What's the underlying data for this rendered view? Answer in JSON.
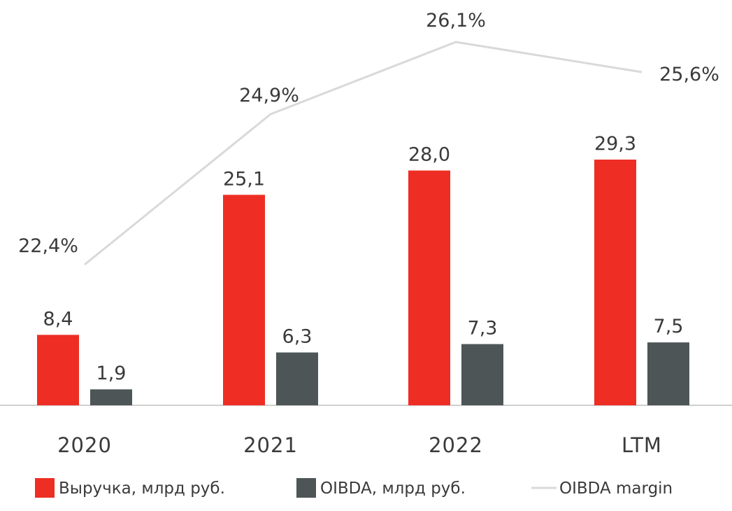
{
  "chart_data": {
    "type": "bar",
    "categories": [
      "2020",
      "2021",
      "2022",
      "LTM"
    ],
    "series": [
      {
        "name": "Выручка, млрд руб.",
        "kind": "bar",
        "color": "#ee2e24",
        "values": [
          8.4,
          25.1,
          28.0,
          29.3
        ],
        "labels": [
          "8,4",
          "25,1",
          "28,0",
          "29,3"
        ]
      },
      {
        "name": "OIBDA, млрд руб.",
        "kind": "bar",
        "color": "#4d5557",
        "values": [
          1.9,
          6.3,
          7.3,
          7.5
        ],
        "labels": [
          "1,9",
          "6,3",
          "7,3",
          "7,5"
        ]
      },
      {
        "name": "OIBDA margin",
        "kind": "line",
        "color": "#d9d9d9",
        "values": [
          22.4,
          24.9,
          26.1,
          25.6
        ],
        "labels": [
          "22,4%",
          "24,9%",
          "26,1%",
          "25,6%"
        ]
      }
    ],
    "legend_position": "bottom",
    "grid": false
  }
}
